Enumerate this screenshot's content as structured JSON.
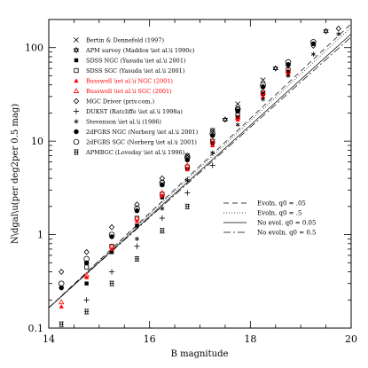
{
  "chart_data": {
    "type": "scatter",
    "xlabel": "B magnitude",
    "ylabel": "N\\dgal\\u(per deg2per 0.5 mag)",
    "xlim": [
      14,
      20
    ],
    "ylim": [
      0.1,
      200
    ],
    "y_scale": "log",
    "x_ticks": [
      "14",
      "16",
      "18",
      "20"
    ],
    "y_ticks": [
      "0.1",
      "1",
      "10",
      "100"
    ],
    "series": [
      {
        "name": "Bertin & Dennefeld (1997)",
        "marker": "x",
        "color": "#000000",
        "x": [
          16.25,
          16.75,
          17.25,
          17.75,
          18.25
        ],
        "y": [
          3.5,
          7.0,
          13.0,
          25.0,
          45.0
        ]
      },
      {
        "name": "APM survey (Maddox \\iet al.\\i 1990c)",
        "marker": "star6",
        "color": "#000000",
        "x": [
          17.5,
          18.5,
          19.5
        ],
        "y": [
          17.0,
          60.0,
          150.0
        ]
      },
      {
        "name": "SDSS NGC (Yasuda \\iet al.\\i 2001)",
        "marker": "filled-square",
        "color": "#000000",
        "x": [
          14.75,
          15.25,
          15.75,
          16.25,
          16.75,
          17.25,
          17.75,
          18.25,
          18.75
        ],
        "y": [
          0.3,
          0.65,
          1.25,
          2.5,
          5.0,
          9.5,
          18.0,
          32.0,
          55.0
        ]
      },
      {
        "name": "SDSS SGC (Yasuda \\iet al.\\i 2001)",
        "marker": "open-square",
        "color": "#000000",
        "x": [
          14.75,
          15.25,
          15.75,
          16.25,
          16.75,
          17.25,
          17.75,
          18.25,
          18.75
        ],
        "y": [
          0.45,
          0.75,
          1.5,
          2.7,
          5.3,
          10.0,
          19.0,
          33.0,
          58.0
        ]
      },
      {
        "name": "Busswell \\iet al.\\i NGC (2001)",
        "marker": "filled-triangle",
        "color": "#ff0000",
        "x": [
          14.25,
          14.75,
          15.25,
          15.75,
          16.25,
          16.75,
          17.25,
          17.75,
          18.25,
          18.75
        ],
        "y": [
          0.17,
          0.35,
          0.7,
          1.4,
          2.6,
          5.0,
          9.0,
          17.0,
          30.0,
          52.0
        ]
      },
      {
        "name": "Busswell \\iet al.\\i SGC (2001)",
        "marker": "open-triangle",
        "color": "#ff0000",
        "x": [
          14.25,
          14.75,
          15.25,
          15.75,
          16.25,
          16.75,
          17.25,
          17.75,
          18.25,
          18.75
        ],
        "y": [
          0.19,
          0.37,
          0.75,
          1.5,
          2.8,
          5.5,
          10.0,
          18.0,
          33.0,
          56.0
        ]
      },
      {
        "name": "MGC Driver (priv.com.)",
        "marker": "open-diamond",
        "color": "#000000",
        "x": [
          14.25,
          14.75,
          15.25,
          15.75,
          16.25,
          16.75,
          17.25,
          17.75,
          18.25,
          18.75,
          19.25,
          19.75
        ],
        "y": [
          0.4,
          0.65,
          1.2,
          2.1,
          4.0,
          7.0,
          13.0,
          22.0,
          38.0,
          65.0,
          105.0,
          160.0
        ]
      },
      {
        "name": "DUKST (Ratcliffe \\iet al.\\i 1998a)",
        "marker": "plus",
        "color": "#000000",
        "x": [
          14.75,
          15.25,
          15.75,
          16.25,
          16.75,
          17.25
        ],
        "y": [
          0.2,
          0.4,
          0.75,
          1.5,
          2.8,
          5.5
        ]
      },
      {
        "name": "Stevenson \\iet al.\\i (1986)",
        "marker": "asterisk",
        "color": "#000000",
        "x": [
          15.75,
          16.25,
          16.75,
          17.25,
          17.75,
          18.25,
          18.75,
          19.25,
          19.75
        ],
        "y": [
          0.9,
          1.9,
          3.8,
          7.5,
          15.0,
          28.0,
          50.0,
          85.0,
          140.0
        ]
      },
      {
        "name": "2dFGRS NGC (Norberg \\iet al.\\i 2001)",
        "marker": "filled-circle",
        "color": "#000000",
        "x": [
          14.25,
          14.75,
          15.25,
          15.75,
          16.25,
          16.75,
          17.25,
          17.75,
          18.25,
          18.75,
          19.25
        ],
        "y": [
          0.27,
          0.5,
          0.95,
          1.8,
          3.4,
          6.3,
          11.5,
          21.0,
          38.0,
          66.0,
          110.0
        ]
      },
      {
        "name": "2dFGRS SGC (Norberg \\iet al.\\i 2001)",
        "marker": "open-circle",
        "color": "#000000",
        "x": [
          14.25,
          14.75,
          15.25,
          15.75,
          16.25,
          16.75,
          17.25,
          17.75,
          18.25,
          18.75,
          19.25
        ],
        "y": [
          0.3,
          0.55,
          1.0,
          1.9,
          3.6,
          6.7,
          12.0,
          22.0,
          40.0,
          70.0,
          115.0
        ]
      },
      {
        "name": "APMBGC (Loveday \\iet al.\\i 1996)",
        "marker": "fancy",
        "color": "#000000",
        "x": [
          14.25,
          14.75,
          15.25,
          15.75,
          16.25,
          16.75
        ],
        "y": [
          0.11,
          0.15,
          0.3,
          0.55,
          1.1,
          2.0
        ]
      }
    ],
    "model_lines": [
      {
        "name": "Evoln. q0 = .05",
        "style": "long-dash",
        "x": [
          14,
          20
        ],
        "y": [
          0.165,
          180
        ]
      },
      {
        "name": "Evoln. q0 = .5",
        "style": "dotted",
        "x": [
          14,
          20
        ],
        "y": [
          0.165,
          165
        ]
      },
      {
        "name": "No evol. q0 = 0.05",
        "style": "solid",
        "x": [
          14,
          20
        ],
        "y": [
          0.165,
          140
        ]
      },
      {
        "name": "No evoln. q0 = 0.5",
        "style": "dash-dot",
        "x": [
          14,
          20
        ],
        "y": [
          0.165,
          130
        ]
      }
    ]
  }
}
